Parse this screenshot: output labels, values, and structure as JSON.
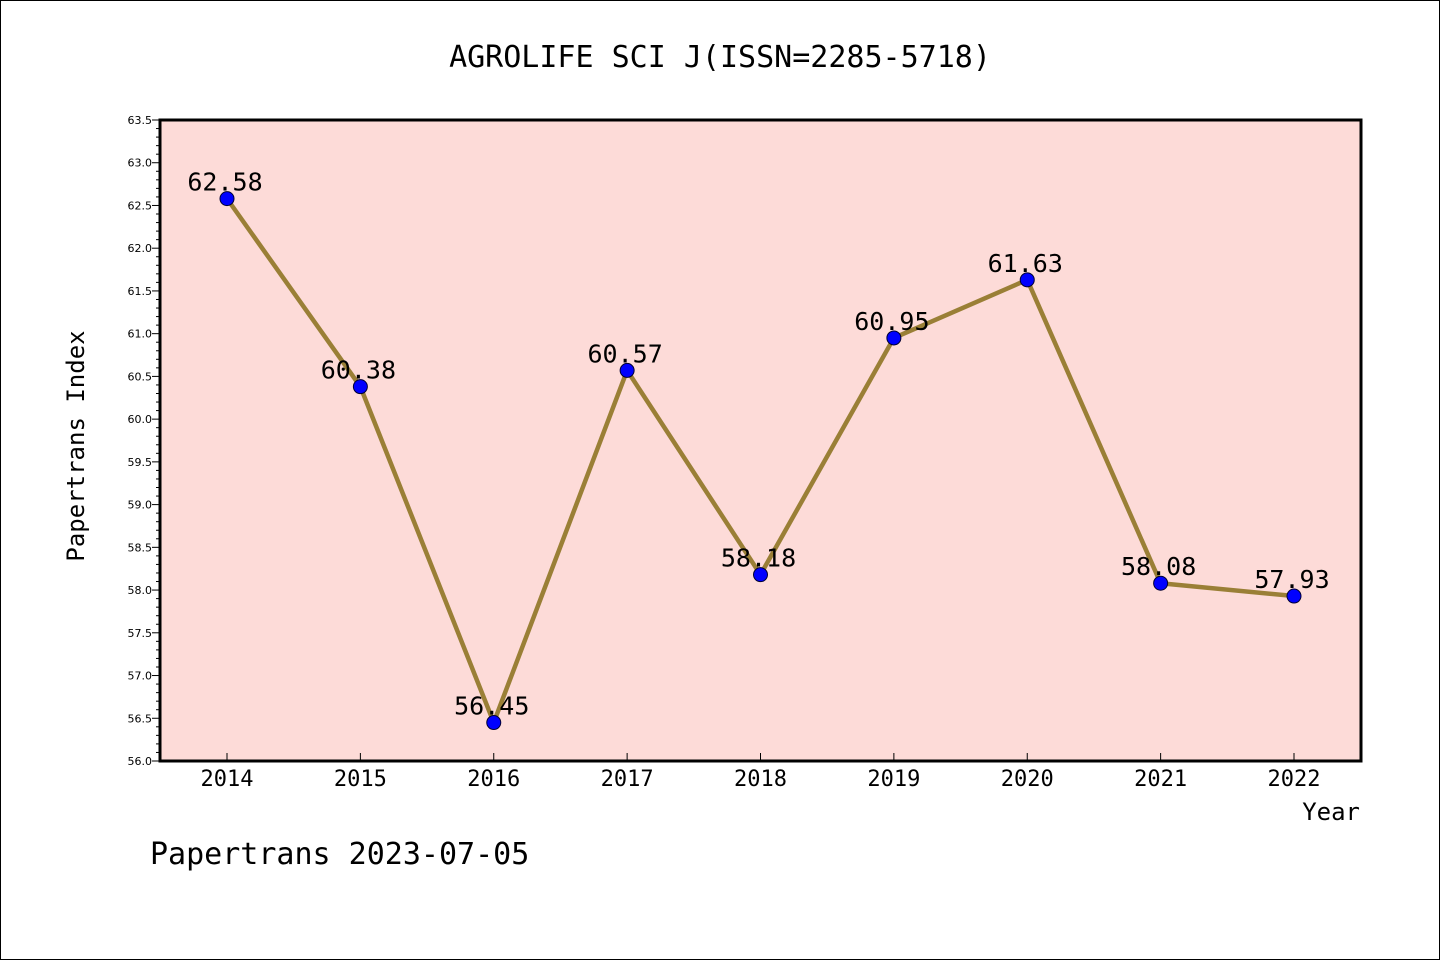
{
  "chart_data": {
    "type": "line",
    "title": "AGROLIFE SCI J(ISSN=2285-5718)",
    "xlabel": "Year",
    "ylabel": "Papertrans Index",
    "categories": [
      "2014",
      "2015",
      "2016",
      "2017",
      "2018",
      "2019",
      "2020",
      "2021",
      "2022"
    ],
    "series": [
      {
        "values": [
          62.58,
          60.38,
          56.45,
          60.57,
          58.18,
          60.95,
          61.63,
          58.08,
          57.93
        ],
        "labels": [
          "62.58",
          "60.38",
          "56.45",
          "60.57",
          "58.18",
          "60.95",
          "61.63",
          "58.08",
          "57.93"
        ]
      }
    ],
    "ylim": [
      56.0,
      63.5
    ],
    "yticks": [
      "56.0",
      "56.5",
      "57.0",
      "57.5",
      "58.0",
      "58.5",
      "59.0",
      "59.5",
      "60.0",
      "60.5",
      "61.0",
      "61.5",
      "62.0",
      "62.5",
      "63.0",
      "63.5"
    ],
    "grid": false,
    "colors": {
      "plot_background": "#fddbd8",
      "line": "#9a7f36",
      "marker": "#0000ff",
      "axis": "#000000"
    }
  },
  "footer": {
    "text": "Papertrans 2023-07-05"
  }
}
